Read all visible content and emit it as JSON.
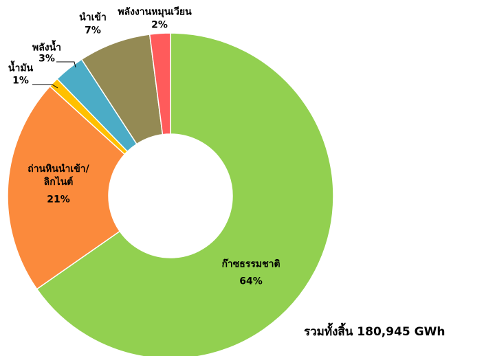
{
  "chart_data": {
    "type": "donut",
    "categories": [
      "ก๊าซธรรมชาติ",
      "ถ่านหินนำเข้า/\nลิกไนต์",
      "น้ำมัน",
      "พลังน้ำ",
      "นำเข้า",
      "พลังงานหมุนเวียน"
    ],
    "values": [
      64,
      21,
      1,
      3,
      7,
      2
    ],
    "value_labels": [
      "64%",
      "21%",
      "1%",
      "3%",
      "7%",
      "2%"
    ],
    "colors": [
      "#92d050",
      "#fb8a3c",
      "#ffc000",
      "#4bacc6",
      "#948a54",
      "#ff5b5b"
    ],
    "annotation": "รวมทั้งสิ้น 180,945 GWh"
  }
}
